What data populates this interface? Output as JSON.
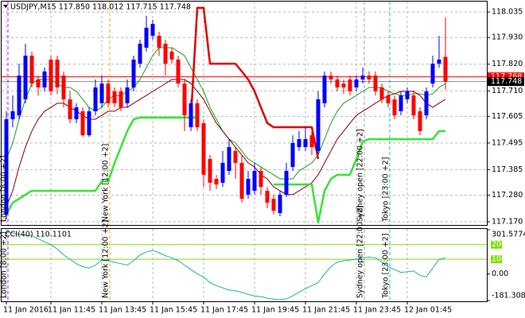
{
  "chart_data": {
    "type": "candlestick",
    "title": "USDJPY,M15 117.850 118.012 117.715 117.748",
    "categories": [
      "11 Jan 2016",
      null,
      null,
      null,
      null,
      null,
      null,
      "11 Jan 11:45",
      null,
      null,
      null,
      null,
      null,
      null,
      null,
      "11 Jan 13:45",
      null,
      null,
      null,
      null,
      null,
      null,
      null,
      "11 Jan 15:45",
      null,
      null,
      null,
      null,
      null,
      null,
      null,
      "11 Jan 17:45",
      null,
      null,
      null,
      null,
      null,
      null,
      null,
      "11 Jan 19:45",
      null,
      null,
      null,
      null,
      null,
      null,
      null,
      "11 Jan 21:45",
      null,
      null,
      null,
      null,
      null,
      null,
      null,
      "11 Jan 23:45",
      null,
      null,
      null,
      null,
      null,
      null,
      null,
      "12 Jan 01:45",
      null,
      null,
      null,
      null,
      null,
      null
    ],
    "open": [
      117.2,
      117.593,
      117.609,
      117.675,
      117.855,
      117.757,
      117.724,
      117.839,
      117.839,
      117.773,
      117.675,
      117.593,
      117.626,
      117.527,
      117.626,
      117.659,
      117.74,
      117.708,
      117.708,
      117.659,
      117.724,
      117.822,
      117.888,
      117.937,
      117.937,
      117.904,
      117.872,
      117.839,
      117.74,
      117.56,
      117.659,
      117.577,
      117.429,
      117.347,
      117.331,
      117.38,
      117.462,
      117.413,
      117.282,
      117.298,
      117.38,
      117.298,
      117.265,
      117.206,
      117.282,
      117.396,
      117.478,
      117.478,
      117.527,
      117.462,
      117.659,
      117.773,
      117.757,
      117.74,
      117.757,
      117.724,
      117.757,
      117.773,
      117.773,
      117.724,
      117.691,
      117.675,
      117.626,
      117.675,
      117.691,
      117.626,
      117.609,
      117.74,
      117.822,
      117.85
    ],
    "high": [
      117.626,
      117.691,
      117.822,
      117.904,
      117.872,
      117.773,
      117.806,
      117.855,
      117.855,
      117.79,
      117.708,
      117.659,
      117.642,
      117.642,
      117.757,
      117.773,
      117.757,
      117.724,
      117.724,
      117.757,
      117.855,
      117.921,
      118.019,
      118.003,
      117.954,
      117.921,
      117.888,
      117.855,
      117.757,
      117.675,
      117.675,
      117.593,
      117.446,
      117.364,
      117.462,
      117.511,
      117.478,
      117.446,
      117.38,
      117.413,
      117.396,
      117.314,
      117.282,
      117.298,
      117.413,
      117.527,
      117.544,
      117.56,
      117.544,
      117.708,
      117.79,
      117.79,
      117.773,
      117.757,
      117.773,
      117.773,
      117.806,
      117.79,
      117.79,
      117.74,
      117.708,
      117.691,
      117.708,
      117.724,
      117.708,
      117.642,
      117.724,
      117.855,
      117.937,
      118.012
    ],
    "low": [
      117.183,
      117.56,
      117.593,
      117.659,
      117.724,
      117.691,
      117.708,
      117.691,
      117.698,
      117.642,
      117.577,
      117.577,
      117.521,
      117.521,
      117.609,
      117.642,
      117.642,
      117.642,
      117.626,
      117.642,
      117.708,
      117.806,
      117.872,
      117.921,
      117.855,
      117.773,
      117.822,
      117.724,
      117.544,
      117.544,
      117.544,
      117.314,
      117.298,
      117.305,
      117.314,
      117.364,
      117.347,
      117.249,
      117.265,
      117.282,
      117.282,
      117.226,
      117.2,
      117.193,
      117.272,
      117.38,
      117.462,
      117.462,
      117.446,
      117.446,
      117.642,
      117.74,
      117.708,
      117.698,
      117.691,
      117.708,
      117.74,
      117.74,
      117.691,
      117.659,
      117.642,
      117.593,
      117.609,
      117.659,
      117.593,
      117.527,
      117.593,
      117.724,
      117.806,
      117.715
    ],
    "close": [
      117.593,
      117.626,
      117.773,
      117.855,
      117.74,
      117.724,
      117.79,
      117.708,
      117.724,
      117.675,
      117.593,
      117.642,
      117.527,
      117.626,
      117.724,
      117.74,
      117.659,
      117.659,
      117.642,
      117.724,
      117.839,
      117.904,
      117.97,
      117.986,
      117.888,
      117.822,
      117.839,
      117.74,
      117.609,
      117.659,
      117.56,
      117.364,
      117.331,
      117.324,
      117.413,
      117.478,
      117.413,
      117.265,
      117.347,
      117.38,
      117.314,
      117.249,
      117.216,
      117.282,
      117.38,
      117.495,
      117.511,
      117.511,
      117.478,
      117.675,
      117.773,
      117.757,
      117.724,
      117.724,
      117.708,
      117.757,
      117.773,
      117.757,
      117.708,
      117.675,
      117.659,
      117.609,
      117.691,
      117.708,
      117.609,
      117.544,
      117.708,
      117.822,
      117.839,
      117.748
    ],
    "bull_color": "#0000ff",
    "bear_color": "#ff0000",
    "ylim": [
      117.157,
      118.078
    ],
    "yticks": [
      118.035,
      {
        "value": 117.93,
        "label": "117.930"
      },
      {
        "value": 117.82,
        "label": "117.820"
      },
      {
        "value": 117.71,
        "label": "117.710"
      },
      117.605,
      117.495,
      117.385,
      {
        "value": 117.28,
        "label": "117.280"
      },
      {
        "value": 117.17,
        "label": "117.170"
      }
    ],
    "grid": true,
    "lines": [
      {
        "color": "#1e9e1e",
        "width": 1,
        "values": [
          117.429,
          117.495,
          117.593,
          117.675,
          117.74,
          117.757,
          117.757,
          117.757,
          117.74,
          117.724,
          117.724,
          117.708,
          117.675,
          117.642,
          117.626,
          117.642,
          117.675,
          117.691,
          117.691,
          117.708,
          117.724,
          117.757,
          117.806,
          117.855,
          117.888,
          117.888,
          117.888,
          117.872,
          117.855,
          117.806,
          117.757,
          117.708,
          117.642,
          117.593,
          117.544,
          117.511,
          117.495,
          117.462,
          117.429,
          117.413,
          117.396,
          117.38,
          117.364,
          117.347,
          117.347,
          117.347,
          117.38,
          117.396,
          117.413,
          117.446,
          117.511,
          117.577,
          117.626,
          117.659,
          117.675,
          117.691,
          117.708,
          117.724,
          117.724,
          117.724,
          117.708,
          117.698,
          117.691,
          117.691,
          117.698,
          117.698,
          117.691,
          117.698,
          117.724,
          117.74
        ]
      },
      {
        "color": "#8b0000",
        "width": 1,
        "values": [
          117.233,
          117.298,
          117.396,
          117.478,
          117.544,
          117.593,
          117.626,
          117.642,
          117.659,
          117.659,
          117.642,
          117.626,
          117.609,
          117.593,
          117.593,
          117.609,
          117.626,
          117.626,
          117.642,
          117.642,
          117.659,
          117.675,
          117.691,
          117.708,
          117.724,
          117.74,
          117.757,
          117.757,
          117.757,
          117.74,
          117.708,
          117.675,
          117.626,
          117.577,
          117.544,
          117.511,
          117.478,
          117.446,
          117.413,
          117.396,
          117.364,
          117.347,
          117.314,
          117.298,
          117.282,
          117.282,
          117.298,
          117.314,
          117.331,
          117.364,
          117.413,
          117.462,
          117.511,
          117.544,
          117.577,
          117.609,
          117.626,
          117.642,
          117.659,
          117.675,
          117.691,
          117.698,
          117.708,
          117.708,
          117.708,
          117.691,
          117.659,
          117.642,
          117.659,
          117.675
        ]
      },
      {
        "color": "#33e633",
        "width": 2.5,
        "values": [
          117.2,
          117.249,
          117.265,
          117.282,
          117.298,
          117.298,
          117.298,
          117.298,
          117.298,
          117.298,
          117.298,
          117.298,
          117.298,
          117.298,
          117.298,
          117.337,
          117.337,
          117.413,
          117.478,
          117.544,
          117.593,
          117.6,
          117.6,
          117.6,
          117.6,
          117.6,
          117.6,
          117.6,
          117.6,
          117.6,
          117.6,
          null,
          null,
          null,
          null,
          null,
          null,
          null,
          null,
          null,
          null,
          null,
          117.324,
          117.324,
          117.324,
          117.324,
          117.324,
          117.324,
          117.324,
          117.167,
          117.298,
          117.347,
          117.364,
          117.364,
          117.364,
          117.429,
          117.501,
          117.511,
          117.511,
          117.511,
          117.511,
          117.511,
          117.511,
          117.511,
          117.511,
          117.511,
          117.511,
          117.511,
          117.544,
          117.544
        ]
      },
      {
        "color": "#e00000",
        "width": 2.5,
        "values": [
          null,
          null,
          null,
          null,
          null,
          null,
          null,
          null,
          null,
          null,
          null,
          null,
          null,
          null,
          null,
          null,
          null,
          null,
          null,
          null,
          null,
          null,
          null,
          null,
          null,
          null,
          null,
          null,
          null,
          117.6,
          118.052,
          118.052,
          117.822,
          117.822,
          117.822,
          117.822,
          117.822,
          117.79,
          117.757,
          117.708,
          117.642,
          117.577,
          117.56,
          117.56,
          117.56,
          117.56,
          117.56,
          117.56,
          117.56,
          117.429,
          null,
          null,
          null,
          null,
          null,
          null,
          null,
          null,
          null,
          null,
          null,
          null,
          null,
          null,
          null,
          null,
          null,
          null,
          null,
          null
        ]
      }
    ],
    "markers": [
      {
        "value": 117.768,
        "color": "#ff0000"
      },
      {
        "value": 117.748,
        "color": "#000000"
      }
    ],
    "sessions": [
      {
        "label": "London [8:00 +2]",
        "bar": 0,
        "color": "#a020f0"
      },
      {
        "label": "New York [12:00 +2]",
        "bar": 16,
        "color": "#ffa500"
      },
      {
        "label": "Sydney open [22:00 +2]",
        "bar": 56,
        "color": "#a0a0a0"
      },
      {
        "label": "Tokyo [23:00 +2]",
        "bar": 60,
        "color": "#00c8d0"
      }
    ],
    "cci": {
      "label": "CCI(40) 110.1101",
      "color": "#20b2aa",
      "values": [
        290,
        280,
        270,
        265,
        260,
        240,
        220,
        200,
        170,
        130,
        100,
        70,
        50,
        40,
        60,
        95,
        90,
        80,
        70,
        60,
        90,
        130,
        150,
        160,
        145,
        125,
        110,
        90,
        60,
        30,
        0,
        -20,
        -60,
        -80,
        -95,
        -110,
        -115,
        -125,
        -140,
        -150,
        -155,
        -165,
        -172,
        -175,
        -170,
        -150,
        -125,
        -100,
        -80,
        -60,
        0,
        50,
        80,
        90,
        95,
        100,
        110,
        115,
        110,
        80,
        50,
        30,
        10,
        15,
        20,
        -10,
        -20,
        40,
        100,
        110.1101
      ],
      "ylim": [
        -181.3082,
        301.5774
      ],
      "yticks": [
        301.5774,
        {
          "value": 0,
          "label": "0.00"
        },
        -181.3082
      ],
      "levels": [
        200,
        100
      ],
      "level_color": "#7fdf00"
    }
  }
}
